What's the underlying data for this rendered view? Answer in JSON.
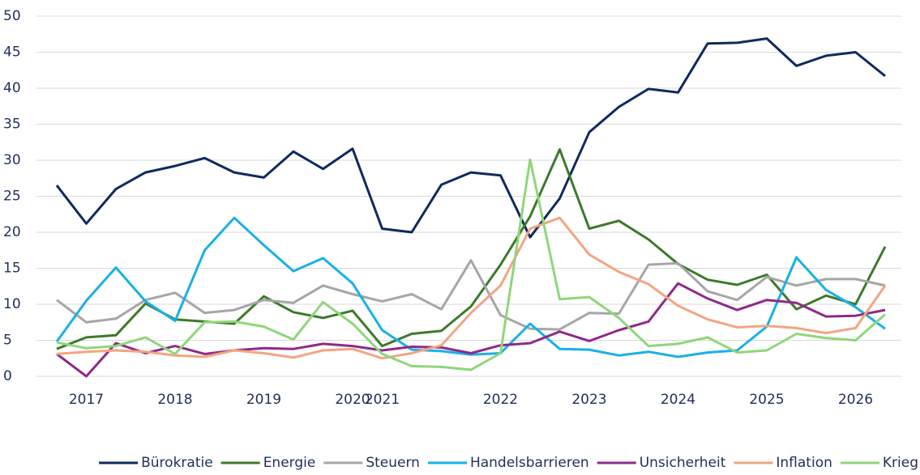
{
  "chart_data": {
    "type": "line",
    "categories": [
      null,
      "2017",
      null,
      null,
      "2018",
      null,
      null,
      "2019",
      null,
      null,
      "2020",
      "2021",
      null,
      null,
      null,
      "2022",
      null,
      null,
      "2023",
      null,
      null,
      "2024",
      null,
      null,
      "2025",
      null,
      null,
      "2026",
      null
    ],
    "ylim": [
      0,
      50
    ],
    "yticks": [
      0,
      5,
      10,
      15,
      20,
      25,
      30,
      35,
      40,
      45,
      50
    ],
    "grid": true,
    "series": [
      {
        "name": "Bürokratie",
        "color": "#0f2a5e",
        "values": [
          26.5,
          21.2,
          26,
          28.3,
          29.2,
          30.3,
          28.3,
          27.6,
          31.2,
          28.8,
          31.6,
          20.5,
          20,
          26.6,
          28.3,
          27.9,
          19.3,
          24.7,
          33.9,
          37.4,
          39.9,
          39.4,
          46.2,
          46.3,
          46.9,
          43.1,
          44.5,
          45,
          41.7
        ]
      },
      {
        "name": "Energie",
        "color": "#3d7a2a",
        "values": [
          3.8,
          5.4,
          5.7,
          10.1,
          7.9,
          7.6,
          7.3,
          11.1,
          8.9,
          8.1,
          9.1,
          4.2,
          5.9,
          6.3,
          9.7,
          15.5,
          22.2,
          31.5,
          20.5,
          21.6,
          19,
          15.6,
          13.4,
          12.7,
          14.1,
          9.3,
          11.2,
          10,
          18
        ]
      },
      {
        "name": "Steuern",
        "color": "#a6a6a6",
        "values": [
          10.6,
          7.5,
          8,
          10.6,
          11.6,
          8.8,
          9.2,
          10.6,
          10.2,
          12.6,
          11.4,
          10.4,
          11.4,
          9.3,
          16.1,
          8.5,
          6.6,
          6.5,
          8.8,
          8.7,
          15.5,
          15.7,
          11.8,
          10.6,
          13.8,
          12.6,
          13.5,
          13.5,
          12.6
        ]
      },
      {
        "name": "Handelsbarrieren",
        "color": "#1ab0e8",
        "values": [
          4.8,
          10.5,
          15.1,
          10.4,
          7.7,
          17.5,
          22,
          18.2,
          14.6,
          16.4,
          12.9,
          6.4,
          3.7,
          3.5,
          3,
          3.2,
          7.3,
          3.8,
          3.7,
          2.9,
          3.4,
          2.7,
          3.3,
          3.6,
          6.9,
          16.5,
          12,
          9.6,
          6.6
        ]
      },
      {
        "name": "Unsicherheit",
        "color": "#8e2a8a",
        "values": [
          3.1,
          0,
          4.6,
          3.2,
          4.2,
          3.1,
          3.6,
          3.9,
          3.8,
          4.5,
          4.2,
          3.6,
          4.1,
          4,
          3.2,
          4.3,
          4.6,
          6.2,
          4.9,
          6.4,
          7.6,
          12.9,
          10.8,
          9.2,
          10.6,
          10.2,
          8.3,
          8.4,
          9.2
        ]
      },
      {
        "name": "Inflation",
        "color": "#f2a582",
        "values": [
          3.1,
          3.4,
          3.6,
          3.4,
          2.9,
          2.7,
          3.6,
          3.2,
          2.6,
          3.6,
          3.8,
          2.5,
          3.2,
          4.3,
          8.8,
          12.6,
          20.5,
          22,
          16.9,
          14.5,
          12.8,
          9.8,
          7.9,
          6.8,
          7,
          6.7,
          6,
          6.7,
          12.6
        ]
      },
      {
        "name": "Krieg",
        "color": "#8fd67a",
        "values": [
          4.7,
          3.9,
          4.2,
          5.4,
          3.1,
          7.5,
          7.6,
          6.9,
          5.1,
          10.3,
          7.3,
          3.1,
          1.4,
          1.3,
          0.9,
          3.2,
          30.1,
          10.7,
          11,
          8.1,
          4.2,
          4.5,
          5.4,
          3.3,
          3.6,
          5.9,
          5.3,
          5,
          8.6
        ]
      }
    ]
  }
}
